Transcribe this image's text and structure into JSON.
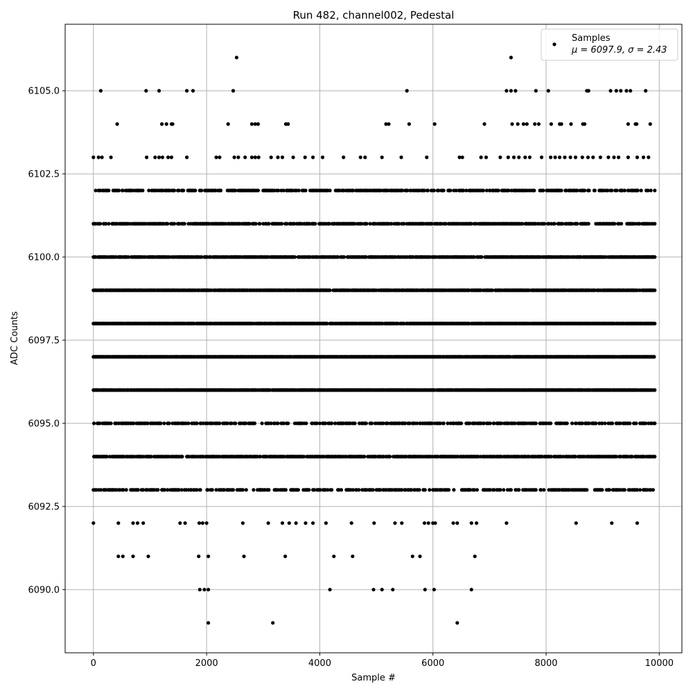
{
  "chart_data": {
    "type": "scatter",
    "title": "Run 482, channel002, Pedestal",
    "xlabel": "Sample #",
    "ylabel": "ADC Counts",
    "xlim": [
      -500,
      10400
    ],
    "ylim": [
      6088.1,
      6107.0
    ],
    "xticks": [
      0,
      2000,
      4000,
      6000,
      8000,
      10000
    ],
    "yticks": [
      6090.0,
      6092.5,
      6095.0,
      6097.5,
      6100.0,
      6102.5,
      6105.0
    ],
    "xtick_labels": [
      "0",
      "2000",
      "4000",
      "6000",
      "8000",
      "10000"
    ],
    "ytick_labels": [
      "6090.0",
      "6092.5",
      "6095.0",
      "6097.5",
      "6100.0",
      "6102.5",
      "6105.0"
    ],
    "grid": true,
    "legend_position": "top-right",
    "legend_title": "Samples",
    "legend_stats": "μ = 6097.9, σ = 2.43",
    "marker_color": "#000000",
    "series": [
      {
        "name": "Samples",
        "level_density": [
          {
            "y": 6102,
            "density": 0.45
          },
          {
            "y": 6101,
            "density": 0.55
          },
          {
            "y": 6100,
            "density": 0.75
          },
          {
            "y": 6099,
            "density": 0.85
          },
          {
            "y": 6098,
            "density": 0.95
          },
          {
            "y": 6097,
            "density": 1.0
          },
          {
            "y": 6096,
            "density": 0.95
          },
          {
            "y": 6095,
            "density": 0.45
          },
          {
            "y": 6094,
            "density": 0.65
          },
          {
            "y": 6093,
            "density": 0.4
          }
        ],
        "x_range": [
          0,
          9920
        ],
        "sparse_points": [
          [
            130,
            6105
          ],
          [
            930,
            6105
          ],
          [
            1160,
            6105
          ],
          [
            1650,
            6105
          ],
          [
            1760,
            6105
          ],
          [
            2470,
            6105
          ],
          [
            5540,
            6105
          ],
          [
            7300,
            6105
          ],
          [
            7380,
            6105
          ],
          [
            7460,
            6105
          ],
          [
            7820,
            6105
          ],
          [
            8040,
            6105
          ],
          [
            8720,
            6105
          ],
          [
            8750,
            6105
          ],
          [
            9140,
            6105
          ],
          [
            9240,
            6105
          ],
          [
            9320,
            6105
          ],
          [
            9420,
            6105
          ],
          [
            9490,
            6105
          ],
          [
            9760,
            6105
          ],
          [
            2530,
            6106
          ],
          [
            7380,
            6106
          ],
          [
            420,
            6104
          ],
          [
            1210,
            6104
          ],
          [
            1290,
            6104
          ],
          [
            1380,
            6104
          ],
          [
            1400,
            6104
          ],
          [
            2380,
            6104
          ],
          [
            2800,
            6104
          ],
          [
            2860,
            6104
          ],
          [
            2910,
            6104
          ],
          [
            3400,
            6104
          ],
          [
            3440,
            6104
          ],
          [
            5170,
            6104
          ],
          [
            5220,
            6104
          ],
          [
            5580,
            6104
          ],
          [
            6030,
            6104
          ],
          [
            6910,
            6104
          ],
          [
            7400,
            6104
          ],
          [
            7500,
            6104
          ],
          [
            7600,
            6104
          ],
          [
            7660,
            6104
          ],
          [
            7800,
            6104
          ],
          [
            7870,
            6104
          ],
          [
            8090,
            6104
          ],
          [
            8240,
            6104
          ],
          [
            8270,
            6104
          ],
          [
            8440,
            6104
          ],
          [
            8650,
            6104
          ],
          [
            8680,
            6104
          ],
          [
            9450,
            6104
          ],
          [
            9580,
            6104
          ],
          [
            9600,
            6104
          ],
          [
            9840,
            6104
          ],
          [
            0,
            6103
          ],
          [
            90,
            6103
          ],
          [
            150,
            6103
          ],
          [
            310,
            6103
          ],
          [
            940,
            6103
          ],
          [
            1090,
            6103
          ],
          [
            1160,
            6103
          ],
          [
            1220,
            6103
          ],
          [
            1320,
            6103
          ],
          [
            1380,
            6103
          ],
          [
            1650,
            6103
          ],
          [
            2170,
            6103
          ],
          [
            2230,
            6103
          ],
          [
            2490,
            6103
          ],
          [
            2560,
            6103
          ],
          [
            2680,
            6103
          ],
          [
            2800,
            6103
          ],
          [
            2860,
            6103
          ],
          [
            2920,
            6103
          ],
          [
            3140,
            6103
          ],
          [
            3260,
            6103
          ],
          [
            3340,
            6103
          ],
          [
            3530,
            6103
          ],
          [
            3740,
            6103
          ],
          [
            3880,
            6103
          ],
          [
            4050,
            6103
          ],
          [
            4420,
            6103
          ],
          [
            4720,
            6103
          ],
          [
            4800,
            6103
          ],
          [
            5100,
            6103
          ],
          [
            5440,
            6103
          ],
          [
            5890,
            6103
          ],
          [
            6470,
            6103
          ],
          [
            6520,
            6103
          ],
          [
            6850,
            6103
          ],
          [
            6940,
            6103
          ],
          [
            7190,
            6103
          ],
          [
            7330,
            6103
          ],
          [
            7430,
            6103
          ],
          [
            7520,
            6103
          ],
          [
            7630,
            6103
          ],
          [
            7710,
            6103
          ],
          [
            7920,
            6103
          ],
          [
            8080,
            6103
          ],
          [
            8160,
            6103
          ],
          [
            8240,
            6103
          ],
          [
            8330,
            6103
          ],
          [
            8430,
            6103
          ],
          [
            8520,
            6103
          ],
          [
            8640,
            6103
          ],
          [
            8740,
            6103
          ],
          [
            8830,
            6103
          ],
          [
            8960,
            6103
          ],
          [
            9100,
            6103
          ],
          [
            9200,
            6103
          ],
          [
            9280,
            6103
          ],
          [
            9450,
            6103
          ],
          [
            9610,
            6103
          ],
          [
            9720,
            6103
          ],
          [
            9810,
            6103
          ],
          [
            0,
            6092
          ],
          [
            440,
            6092
          ],
          [
            700,
            6092
          ],
          [
            780,
            6092
          ],
          [
            880,
            6092
          ],
          [
            1530,
            6092
          ],
          [
            1620,
            6092
          ],
          [
            1870,
            6092
          ],
          [
            1930,
            6092
          ],
          [
            2000,
            6092
          ],
          [
            2640,
            6092
          ],
          [
            3090,
            6092
          ],
          [
            3340,
            6092
          ],
          [
            3460,
            6092
          ],
          [
            3580,
            6092
          ],
          [
            3750,
            6092
          ],
          [
            3880,
            6092
          ],
          [
            4110,
            6092
          ],
          [
            4560,
            6092
          ],
          [
            4960,
            6092
          ],
          [
            5330,
            6092
          ],
          [
            5450,
            6092
          ],
          [
            5850,
            6092
          ],
          [
            5920,
            6092
          ],
          [
            6000,
            6092
          ],
          [
            6040,
            6092
          ],
          [
            6360,
            6092
          ],
          [
            6430,
            6092
          ],
          [
            6680,
            6092
          ],
          [
            6770,
            6092
          ],
          [
            7300,
            6092
          ],
          [
            8530,
            6092
          ],
          [
            9160,
            6092
          ],
          [
            9610,
            6092
          ],
          [
            440,
            6091
          ],
          [
            520,
            6091
          ],
          [
            700,
            6091
          ],
          [
            970,
            6091
          ],
          [
            1860,
            6091
          ],
          [
            2030,
            6091
          ],
          [
            2660,
            6091
          ],
          [
            3390,
            6091
          ],
          [
            4250,
            6091
          ],
          [
            4580,
            6091
          ],
          [
            5640,
            6091
          ],
          [
            5770,
            6091
          ],
          [
            6740,
            6091
          ],
          [
            1880,
            6090
          ],
          [
            1960,
            6090
          ],
          [
            2030,
            6090
          ],
          [
            4180,
            6090
          ],
          [
            4950,
            6090
          ],
          [
            5100,
            6090
          ],
          [
            5290,
            6090
          ],
          [
            5860,
            6090
          ],
          [
            6020,
            6090
          ],
          [
            6680,
            6090
          ],
          [
            2030,
            6089
          ],
          [
            3170,
            6089
          ],
          [
            6430,
            6089
          ]
        ]
      }
    ]
  }
}
